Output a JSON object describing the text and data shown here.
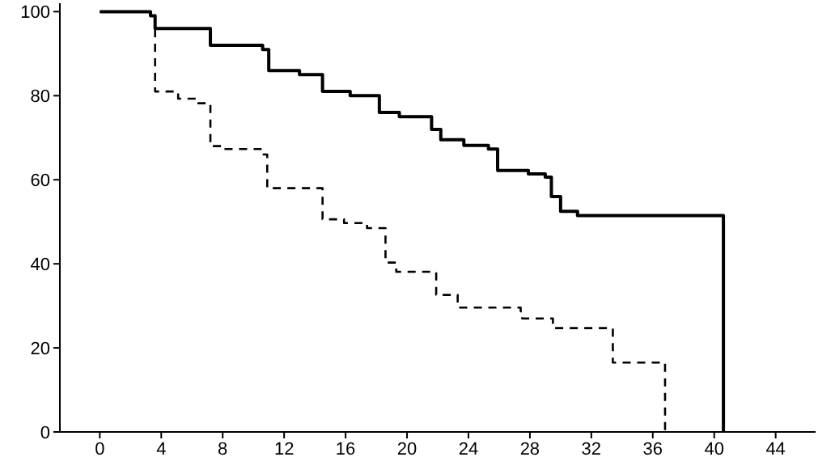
{
  "chart_data": {
    "type": "step",
    "xlim": [
      -2.6,
      46.6
    ],
    "ylim": [
      0,
      102
    ],
    "xticks": [
      0,
      4,
      8,
      12,
      16,
      20,
      24,
      28,
      32,
      36,
      40,
      44
    ],
    "yticks": [
      0,
      20,
      40,
      60,
      80,
      100
    ],
    "grid": false,
    "legend": false,
    "marker": "none",
    "series": [
      {
        "color": "#000000",
        "line_style": "solid",
        "x": [
          0,
          3.3,
          3.6,
          7.2,
          10.6,
          11.0,
          13.0,
          14.5,
          16.3,
          18.2,
          19.5,
          21.6,
          22.2,
          23.7,
          25.3,
          25.9,
          27.9,
          29.0,
          29.4,
          30.0,
          31.1,
          40.6
        ],
        "values": [
          100,
          99,
          96,
          92,
          91,
          86,
          85,
          81,
          80,
          76,
          75,
          72,
          69.5,
          68.2,
          67.3,
          62.2,
          61.4,
          60.6,
          56,
          52.5,
          51.5,
          0
        ]
      },
      {
        "color": "#000000",
        "line_style": "dashed",
        "x": [
          0,
          3.3,
          3.6,
          5.1,
          6.3,
          7.2,
          8.0,
          10.6,
          10.9,
          14.5,
          15.9,
          17.4,
          18.6,
          19.3,
          21.9,
          23.3,
          27.4,
          27.5,
          29.5,
          33.4,
          36.8
        ],
        "values": [
          100,
          99,
          81,
          79.3,
          78.2,
          68,
          67.3,
          66,
          58,
          50.6,
          49.7,
          48.5,
          40.3,
          38.1,
          32.6,
          29.6,
          28.7,
          27,
          24.7,
          16.5,
          0
        ]
      }
    ]
  }
}
